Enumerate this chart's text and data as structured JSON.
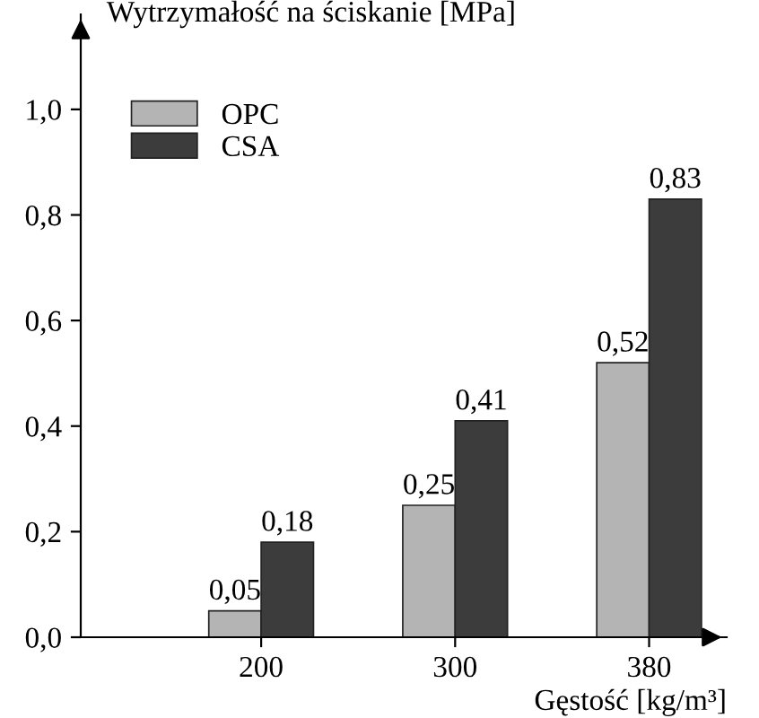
{
  "chart_data": {
    "type": "bar",
    "ylabel": "Wytrzymałość na ściskanie [MPa]",
    "xlabel": "Gęstość [kg/m³]",
    "categories": [
      "200",
      "300",
      "380"
    ],
    "series": [
      {
        "name": "OPC",
        "color": "#b4b4b4",
        "values": [
          0.05,
          0.25,
          0.52
        ],
        "value_labels": [
          "0,05",
          "0,25",
          "0,52"
        ]
      },
      {
        "name": "CSA",
        "color": "#3c3c3c",
        "values": [
          0.18,
          0.41,
          0.83
        ],
        "value_labels": [
          "0,18",
          "0,41",
          "0,83"
        ]
      }
    ],
    "ylim": [
      0,
      1.18
    ],
    "yticks": [
      {
        "value": 0,
        "label": "0,0"
      },
      {
        "value": 0.2,
        "label": "0,2"
      },
      {
        "value": 0.4,
        "label": "0,4"
      },
      {
        "value": 0.6,
        "label": "0,6"
      },
      {
        "value": 0.8,
        "label": "0,8"
      },
      {
        "value": 1.0,
        "label": "1,0"
      }
    ],
    "grid": false,
    "legend": "top left"
  }
}
